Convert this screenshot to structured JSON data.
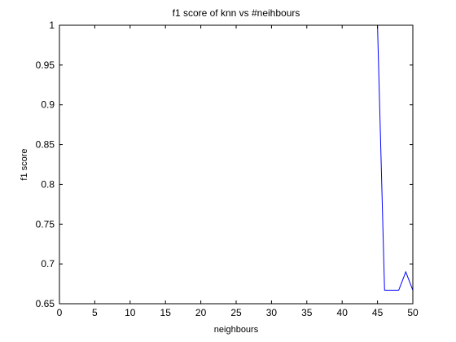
{
  "chart_data": {
    "type": "line",
    "title": "f1 score of knn vs #neihbours",
    "xlabel": "neighbours",
    "ylabel": "f1 score",
    "xlim": [
      0,
      50
    ],
    "ylim": [
      0.65,
      1
    ],
    "xticks": [
      0,
      5,
      10,
      15,
      20,
      25,
      30,
      35,
      40,
      45,
      50
    ],
    "yticks": [
      0.65,
      0.7,
      0.75,
      0.8,
      0.85,
      0.9,
      0.95,
      1
    ],
    "ytick_labels": [
      "0.65",
      "0.7",
      "0.75",
      "0.8",
      "0.85",
      "0.9",
      "0.95",
      "1"
    ],
    "grid": false,
    "series": [
      {
        "color": "#0000ff",
        "x": [
          1,
          2,
          3,
          4,
          5,
          6,
          7,
          8,
          9,
          10,
          11,
          12,
          13,
          14,
          15,
          16,
          17,
          18,
          19,
          20,
          21,
          22,
          23,
          24,
          25,
          26,
          27,
          28,
          29,
          30,
          31,
          32,
          33,
          34,
          35,
          36,
          37,
          38,
          39,
          40,
          41,
          42,
          43,
          44,
          45,
          46,
          47,
          48,
          49,
          50
        ],
        "y": [
          1,
          1,
          1,
          1,
          1,
          1,
          1,
          1,
          1,
          1,
          1,
          1,
          1,
          1,
          1,
          1,
          1,
          1,
          1,
          1,
          1,
          1,
          1,
          1,
          1,
          1,
          1,
          1,
          1,
          1,
          1,
          1,
          1,
          1,
          1,
          1,
          1,
          1,
          1,
          1,
          1,
          1,
          1,
          1,
          1,
          0.667,
          0.667,
          0.667,
          0.69,
          0.667
        ]
      }
    ]
  }
}
